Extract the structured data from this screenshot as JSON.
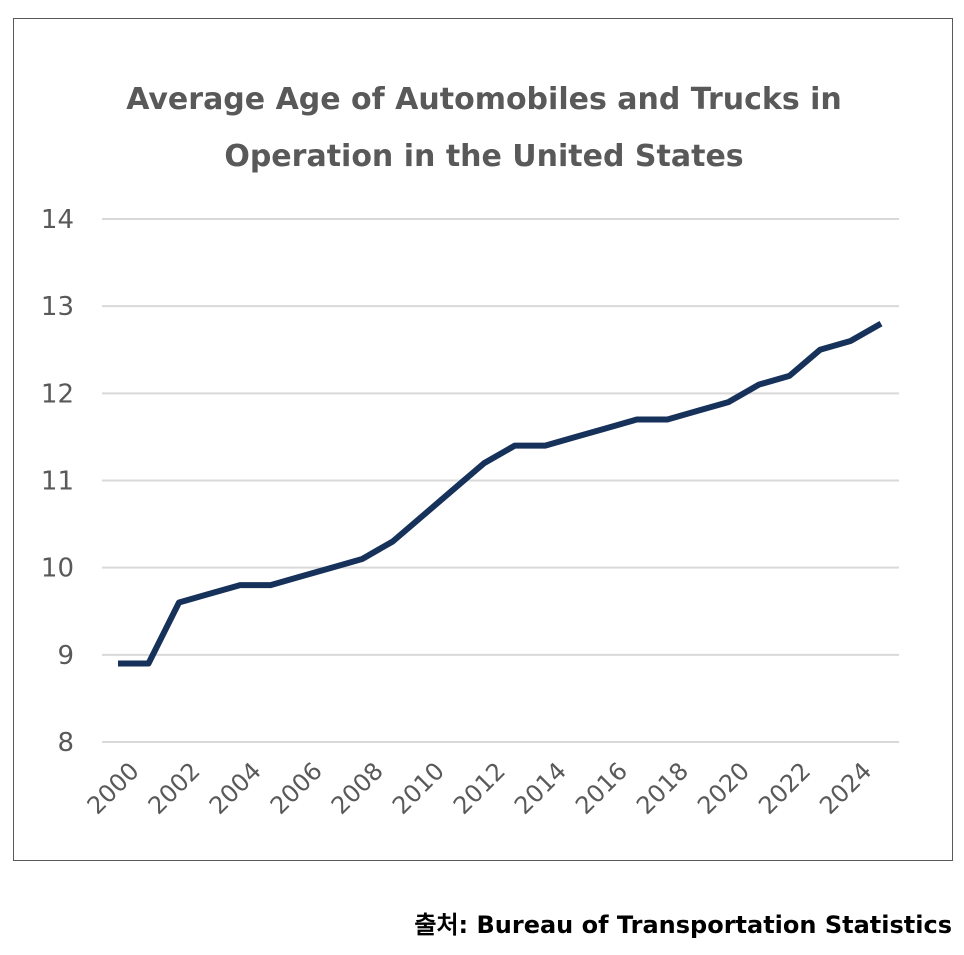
{
  "chart_data": {
    "type": "line",
    "title_lines": [
      "Average Age of Automobiles and Trucks in",
      "Operation in the United States"
    ],
    "xlabel": "",
    "ylabel": "",
    "x": [
      2000,
      2001,
      2002,
      2003,
      2004,
      2005,
      2006,
      2007,
      2008,
      2009,
      2010,
      2011,
      2012,
      2013,
      2014,
      2015,
      2016,
      2017,
      2018,
      2019,
      2020,
      2021,
      2022,
      2023,
      2024,
      2025
    ],
    "x_tick_labels": [
      "2000",
      "2002",
      "2004",
      "2006",
      "2008",
      "2010",
      "2012",
      "2014",
      "2016",
      "2018",
      "2020",
      "2022",
      "2024"
    ],
    "series": [
      {
        "name": "",
        "color": "#17325a",
        "values": [
          8.9,
          8.9,
          9.6,
          9.7,
          9.8,
          9.8,
          9.9,
          10.0,
          10.1,
          10.3,
          10.6,
          10.9,
          11.2,
          11.4,
          11.4,
          11.5,
          11.6,
          11.7,
          11.7,
          11.8,
          11.9,
          12.1,
          12.2,
          12.5,
          12.6,
          12.8
        ]
      }
    ],
    "ylim": [
      8,
      14
    ],
    "y_ticks": [
      8,
      9,
      10,
      11,
      12,
      13,
      14
    ],
    "grid": true,
    "legend": "none"
  },
  "source": "출처: Bureau of Transportation Statistics",
  "colors": {
    "line": "#17325a",
    "grid": "#d9d9d9",
    "text": "#595959",
    "frame": "#595959"
  }
}
